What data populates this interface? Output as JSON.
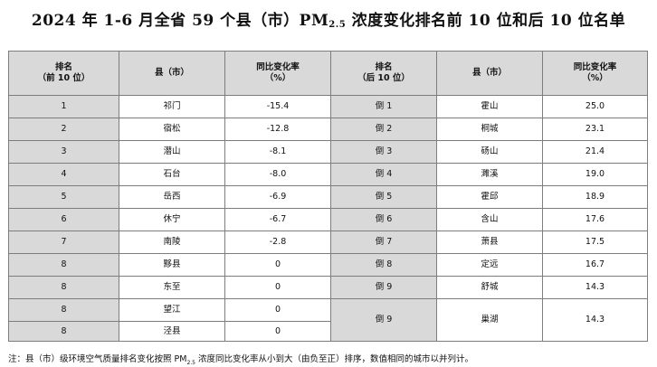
{
  "title": {
    "prefix": "2024 年 1-6 月全省 59 个县（市）PM",
    "subscript": "2.5",
    "suffix": " 浓度变化排名前 10 位和后 10 位名单"
  },
  "headers": {
    "rank_top": [
      "排名",
      "（前 10 位）"
    ],
    "county": "县（市）",
    "change": [
      "同比变化率",
      "（%）"
    ],
    "rank_bottom": [
      "排名",
      "（后 10 位）"
    ]
  },
  "top10": [
    {
      "rank": "1",
      "county": "祁门",
      "change": "-15.4"
    },
    {
      "rank": "2",
      "county": "宿松",
      "change": "-12.8"
    },
    {
      "rank": "3",
      "county": "潜山",
      "change": "-8.1"
    },
    {
      "rank": "4",
      "county": "石台",
      "change": "-8.0"
    },
    {
      "rank": "5",
      "county": "岳西",
      "change": "-6.9"
    },
    {
      "rank": "6",
      "county": "休宁",
      "change": "-6.7"
    },
    {
      "rank": "7",
      "county": "南陵",
      "change": "-2.8"
    },
    {
      "rank": "8",
      "county": "黟县",
      "change": "0"
    },
    {
      "rank": "8",
      "county": "东至",
      "change": "0"
    },
    {
      "rank": "8",
      "county": "望江",
      "change": "0"
    },
    {
      "rank": "8",
      "county": "泾县",
      "change": "0"
    }
  ],
  "bottom10": [
    {
      "rank": "倒 1",
      "county": "霍山",
      "change": "25.0"
    },
    {
      "rank": "倒 2",
      "county": "桐城",
      "change": "23.1"
    },
    {
      "rank": "倒 3",
      "county": "砀山",
      "change": "21.4"
    },
    {
      "rank": "倒 4",
      "county": "濉溪",
      "change": "19.0"
    },
    {
      "rank": "倒 5",
      "county": "霍邱",
      "change": "18.9"
    },
    {
      "rank": "倒 6",
      "county": "含山",
      "change": "17.6"
    },
    {
      "rank": "倒 7",
      "county": "萧县",
      "change": "17.5"
    },
    {
      "rank": "倒 8",
      "county": "定远",
      "change": "16.7"
    },
    {
      "rank": "倒 9",
      "county": "舒城",
      "change": "14.3"
    },
    {
      "rank": "倒 9",
      "county": "巢湖",
      "change": "14.3"
    }
  ],
  "note": {
    "prefix": "注：县（市）级环境空气质量排名变化按照 PM",
    "subscript": "2.5",
    "suffix": " 浓度同比变化率从小到大（由负至正）排序，数值相同的城市以并列计。"
  },
  "colors": {
    "header_bg": "#d9d9d9",
    "border": "#7d7d7d"
  }
}
